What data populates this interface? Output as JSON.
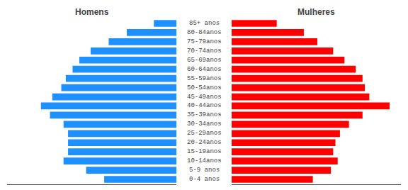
{
  "chart_data": {
    "type": "bar",
    "orientation": "horizontal",
    "categories": [
      "85+ anos",
      "80-84anos",
      "75-79anos",
      "70-74anos",
      "65-69anos",
      "60-64anos",
      "55-59anos",
      "50-54anos",
      "45-49anos",
      "40-44anos",
      "35-39anos",
      "30-34anos",
      "25-29anos",
      "20-24anos",
      "15-19anos",
      "10-14anos",
      "5-9 anos",
      "0-4 anos"
    ],
    "series": [
      {
        "name": "Homens",
        "color": "#1E90FF",
        "values": [
          1.0,
          2.2,
          3.0,
          3.8,
          4.3,
          4.6,
          4.9,
          5.1,
          5.5,
          6.0,
          5.6,
          5.0,
          4.8,
          4.8,
          4.8,
          5.0,
          4.0,
          3.2
        ]
      },
      {
        "name": "Mulheres",
        "color": "#FF0000",
        "values": [
          2.0,
          3.2,
          3.8,
          4.5,
          5.0,
          5.5,
          5.8,
          5.9,
          6.1,
          7.0,
          5.8,
          5.2,
          4.8,
          4.6,
          4.5,
          4.7,
          4.4,
          3.6
        ]
      }
    ],
    "xlim": [
      0,
      7.5
    ],
    "tick_labels": "y",
    "grid": false
  }
}
